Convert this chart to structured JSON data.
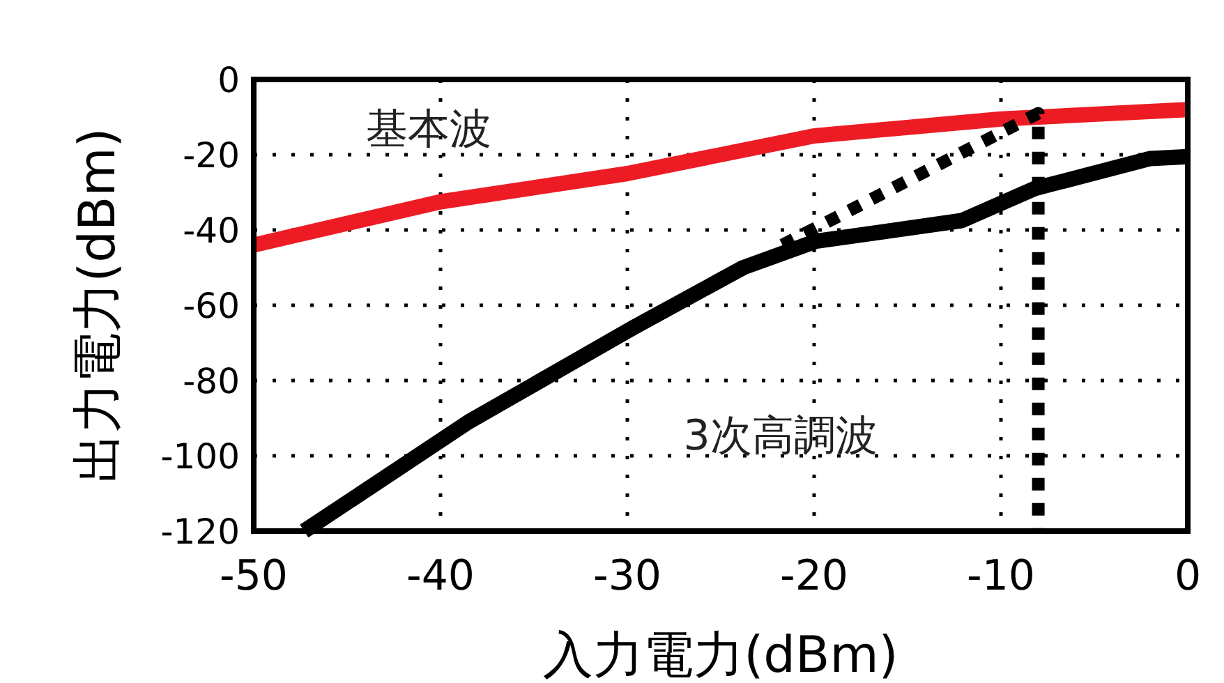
{
  "chart_data": {
    "type": "line",
    "xlabel": "入力電力(dBm)",
    "ylabel": "出力電力(dBm)",
    "xlim": [
      -50,
      0
    ],
    "ylim": [
      -120,
      0
    ],
    "xticks": [
      -50,
      -40,
      -30,
      -20,
      -10,
      0
    ],
    "yticks": [
      -120,
      -100,
      -80,
      -60,
      -40,
      -20,
      0
    ],
    "grid": true,
    "legend": false,
    "series": [
      {
        "name": "基本波",
        "color": "#ed1c24",
        "line_style": "solid",
        "x": [
          -50,
          -40,
          -30,
          -20,
          -10,
          0
        ],
        "values": [
          -44,
          -32.5,
          -25,
          -15,
          -10.5,
          -8
        ]
      },
      {
        "name": "3次高調波",
        "color": "#000000",
        "line_style": "solid",
        "x": [
          -47.3,
          -38.5,
          -29.7,
          -23.8,
          -19.9,
          -12.1,
          -8.2,
          -2,
          0
        ],
        "values": [
          -120,
          -91,
          -66,
          -50,
          -43,
          -37.5,
          -29,
          -21,
          -20.5
        ]
      },
      {
        "color": "#000000",
        "line_style": "dotted",
        "x": [
          -21.7,
          -8,
          -8
        ],
        "values": [
          -44,
          -9,
          -120
        ]
      }
    ]
  }
}
